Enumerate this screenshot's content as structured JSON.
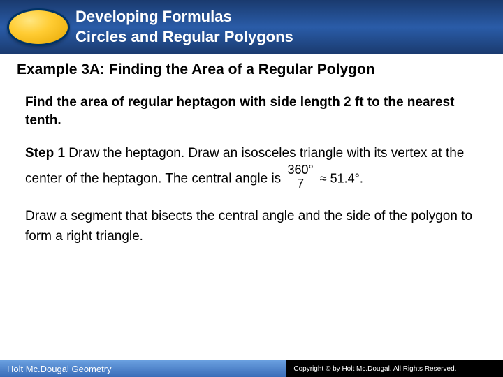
{
  "header": {
    "line1": "Developing Formulas",
    "line2": "Circles and Regular Polygons"
  },
  "example_title": "Example 3A: Finding the Area of a Regular Polygon",
  "problem": "Find the area of regular heptagon with side length 2 ft to the nearest tenth.",
  "step1": {
    "label": "Step 1",
    "text_before": " Draw the heptagon. Draw an isosceles triangle with its vertex at the center of the heptagon. The central angle is ",
    "frac_top": "360°",
    "frac_bot": "7",
    "approx": " ≈ 51.4°."
  },
  "para2": "Draw a segment that bisects the central angle and the side of the polygon to form a right triangle.",
  "footer": {
    "left": "Holt Mc.Dougal Geometry",
    "right": "Copyright © by Holt Mc.Dougal. All Rights Reserved."
  },
  "colors": {
    "header_gradient_top": "#1a3a6e",
    "header_gradient_mid": "#2a5ca8",
    "oval_fill": "#ffcc33",
    "oval_border": "#003366",
    "footer_left_bg": "#3a6cb8",
    "footer_right_bg": "#000000",
    "text": "#000000"
  }
}
